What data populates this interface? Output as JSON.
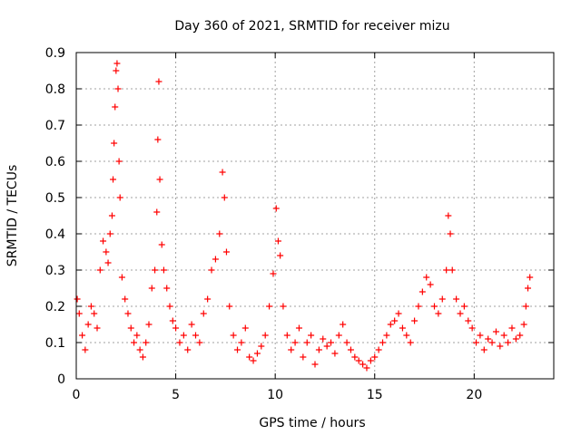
{
  "chart_data": {
    "type": "scatter",
    "title": "Day 360 of 2021, SRMTID for receiver mizu",
    "xlabel": "GPS time / hours",
    "ylabel": "SRMTID / TECUs",
    "xlim": [
      0,
      24
    ],
    "ylim": [
      0,
      0.9
    ],
    "xticks": [
      "0",
      "5",
      "10",
      "15",
      "20"
    ],
    "yticks": [
      "0",
      "0.1",
      "0.2",
      "0.3",
      "0.4",
      "0.5",
      "0.6",
      "0.7",
      "0.8",
      "0.9"
    ],
    "grid": true,
    "marker": "+",
    "color": "#ff0000",
    "series": [
      {
        "name": "SRMTID",
        "x": [
          0.05,
          0.15,
          0.3,
          0.45,
          0.6,
          0.75,
          0.9,
          1.05,
          1.2,
          1.35,
          1.5,
          1.6,
          1.7,
          1.8,
          1.85,
          1.9,
          1.95,
          2.0,
          2.05,
          2.1,
          2.15,
          2.2,
          2.3,
          2.45,
          2.6,
          2.75,
          2.9,
          3.05,
          3.2,
          3.35,
          3.5,
          3.65,
          3.8,
          3.95,
          4.05,
          4.1,
          4.15,
          4.2,
          4.3,
          4.4,
          4.55,
          4.7,
          4.85,
          5.0,
          5.2,
          5.4,
          5.6,
          5.8,
          6.0,
          6.2,
          6.4,
          6.6,
          6.8,
          7.0,
          7.2,
          7.35,
          7.45,
          7.55,
          7.7,
          7.9,
          8.1,
          8.3,
          8.5,
          8.7,
          8.9,
          9.1,
          9.3,
          9.5,
          9.7,
          9.9,
          10.05,
          10.15,
          10.25,
          10.4,
          10.6,
          10.8,
          11.0,
          11.2,
          11.4,
          11.6,
          11.8,
          12.0,
          12.2,
          12.4,
          12.6,
          12.8,
          13.0,
          13.2,
          13.4,
          13.6,
          13.8,
          14.0,
          14.2,
          14.4,
          14.6,
          14.8,
          15.0,
          15.2,
          15.4,
          15.6,
          15.8,
          16.0,
          16.2,
          16.4,
          16.6,
          16.8,
          17.0,
          17.2,
          17.4,
          17.6,
          17.8,
          18.0,
          18.2,
          18.4,
          18.6,
          18.7,
          18.8,
          18.9,
          19.1,
          19.3,
          19.5,
          19.7,
          19.9,
          20.1,
          20.3,
          20.5,
          20.7,
          20.9,
          21.1,
          21.3,
          21.5,
          21.7,
          21.9,
          22.1,
          22.3,
          22.5,
          22.6,
          22.7,
          22.8
        ],
        "y": [
          0.22,
          0.18,
          0.12,
          0.08,
          0.15,
          0.2,
          0.18,
          0.14,
          0.3,
          0.38,
          0.35,
          0.32,
          0.4,
          0.45,
          0.55,
          0.65,
          0.75,
          0.85,
          0.87,
          0.8,
          0.6,
          0.5,
          0.28,
          0.22,
          0.18,
          0.14,
          0.1,
          0.12,
          0.08,
          0.06,
          0.1,
          0.15,
          0.25,
          0.3,
          0.46,
          0.66,
          0.82,
          0.55,
          0.37,
          0.3,
          0.25,
          0.2,
          0.16,
          0.14,
          0.1,
          0.12,
          0.08,
          0.15,
          0.12,
          0.1,
          0.18,
          0.22,
          0.3,
          0.33,
          0.4,
          0.57,
          0.5,
          0.35,
          0.2,
          0.12,
          0.08,
          0.1,
          0.14,
          0.06,
          0.05,
          0.07,
          0.09,
          0.12,
          0.2,
          0.29,
          0.47,
          0.38,
          0.34,
          0.2,
          0.12,
          0.08,
          0.1,
          0.14,
          0.06,
          0.1,
          0.12,
          0.04,
          0.08,
          0.11,
          0.09,
          0.1,
          0.07,
          0.12,
          0.15,
          0.1,
          0.08,
          0.06,
          0.05,
          0.04,
          0.03,
          0.05,
          0.06,
          0.08,
          0.1,
          0.12,
          0.15,
          0.16,
          0.18,
          0.14,
          0.12,
          0.1,
          0.16,
          0.2,
          0.24,
          0.28,
          0.26,
          0.2,
          0.18,
          0.22,
          0.3,
          0.45,
          0.4,
          0.3,
          0.22,
          0.18,
          0.2,
          0.16,
          0.14,
          0.1,
          0.12,
          0.08,
          0.11,
          0.1,
          0.13,
          0.09,
          0.12,
          0.1,
          0.14,
          0.11,
          0.12,
          0.15,
          0.2,
          0.25,
          0.28
        ]
      }
    ]
  }
}
